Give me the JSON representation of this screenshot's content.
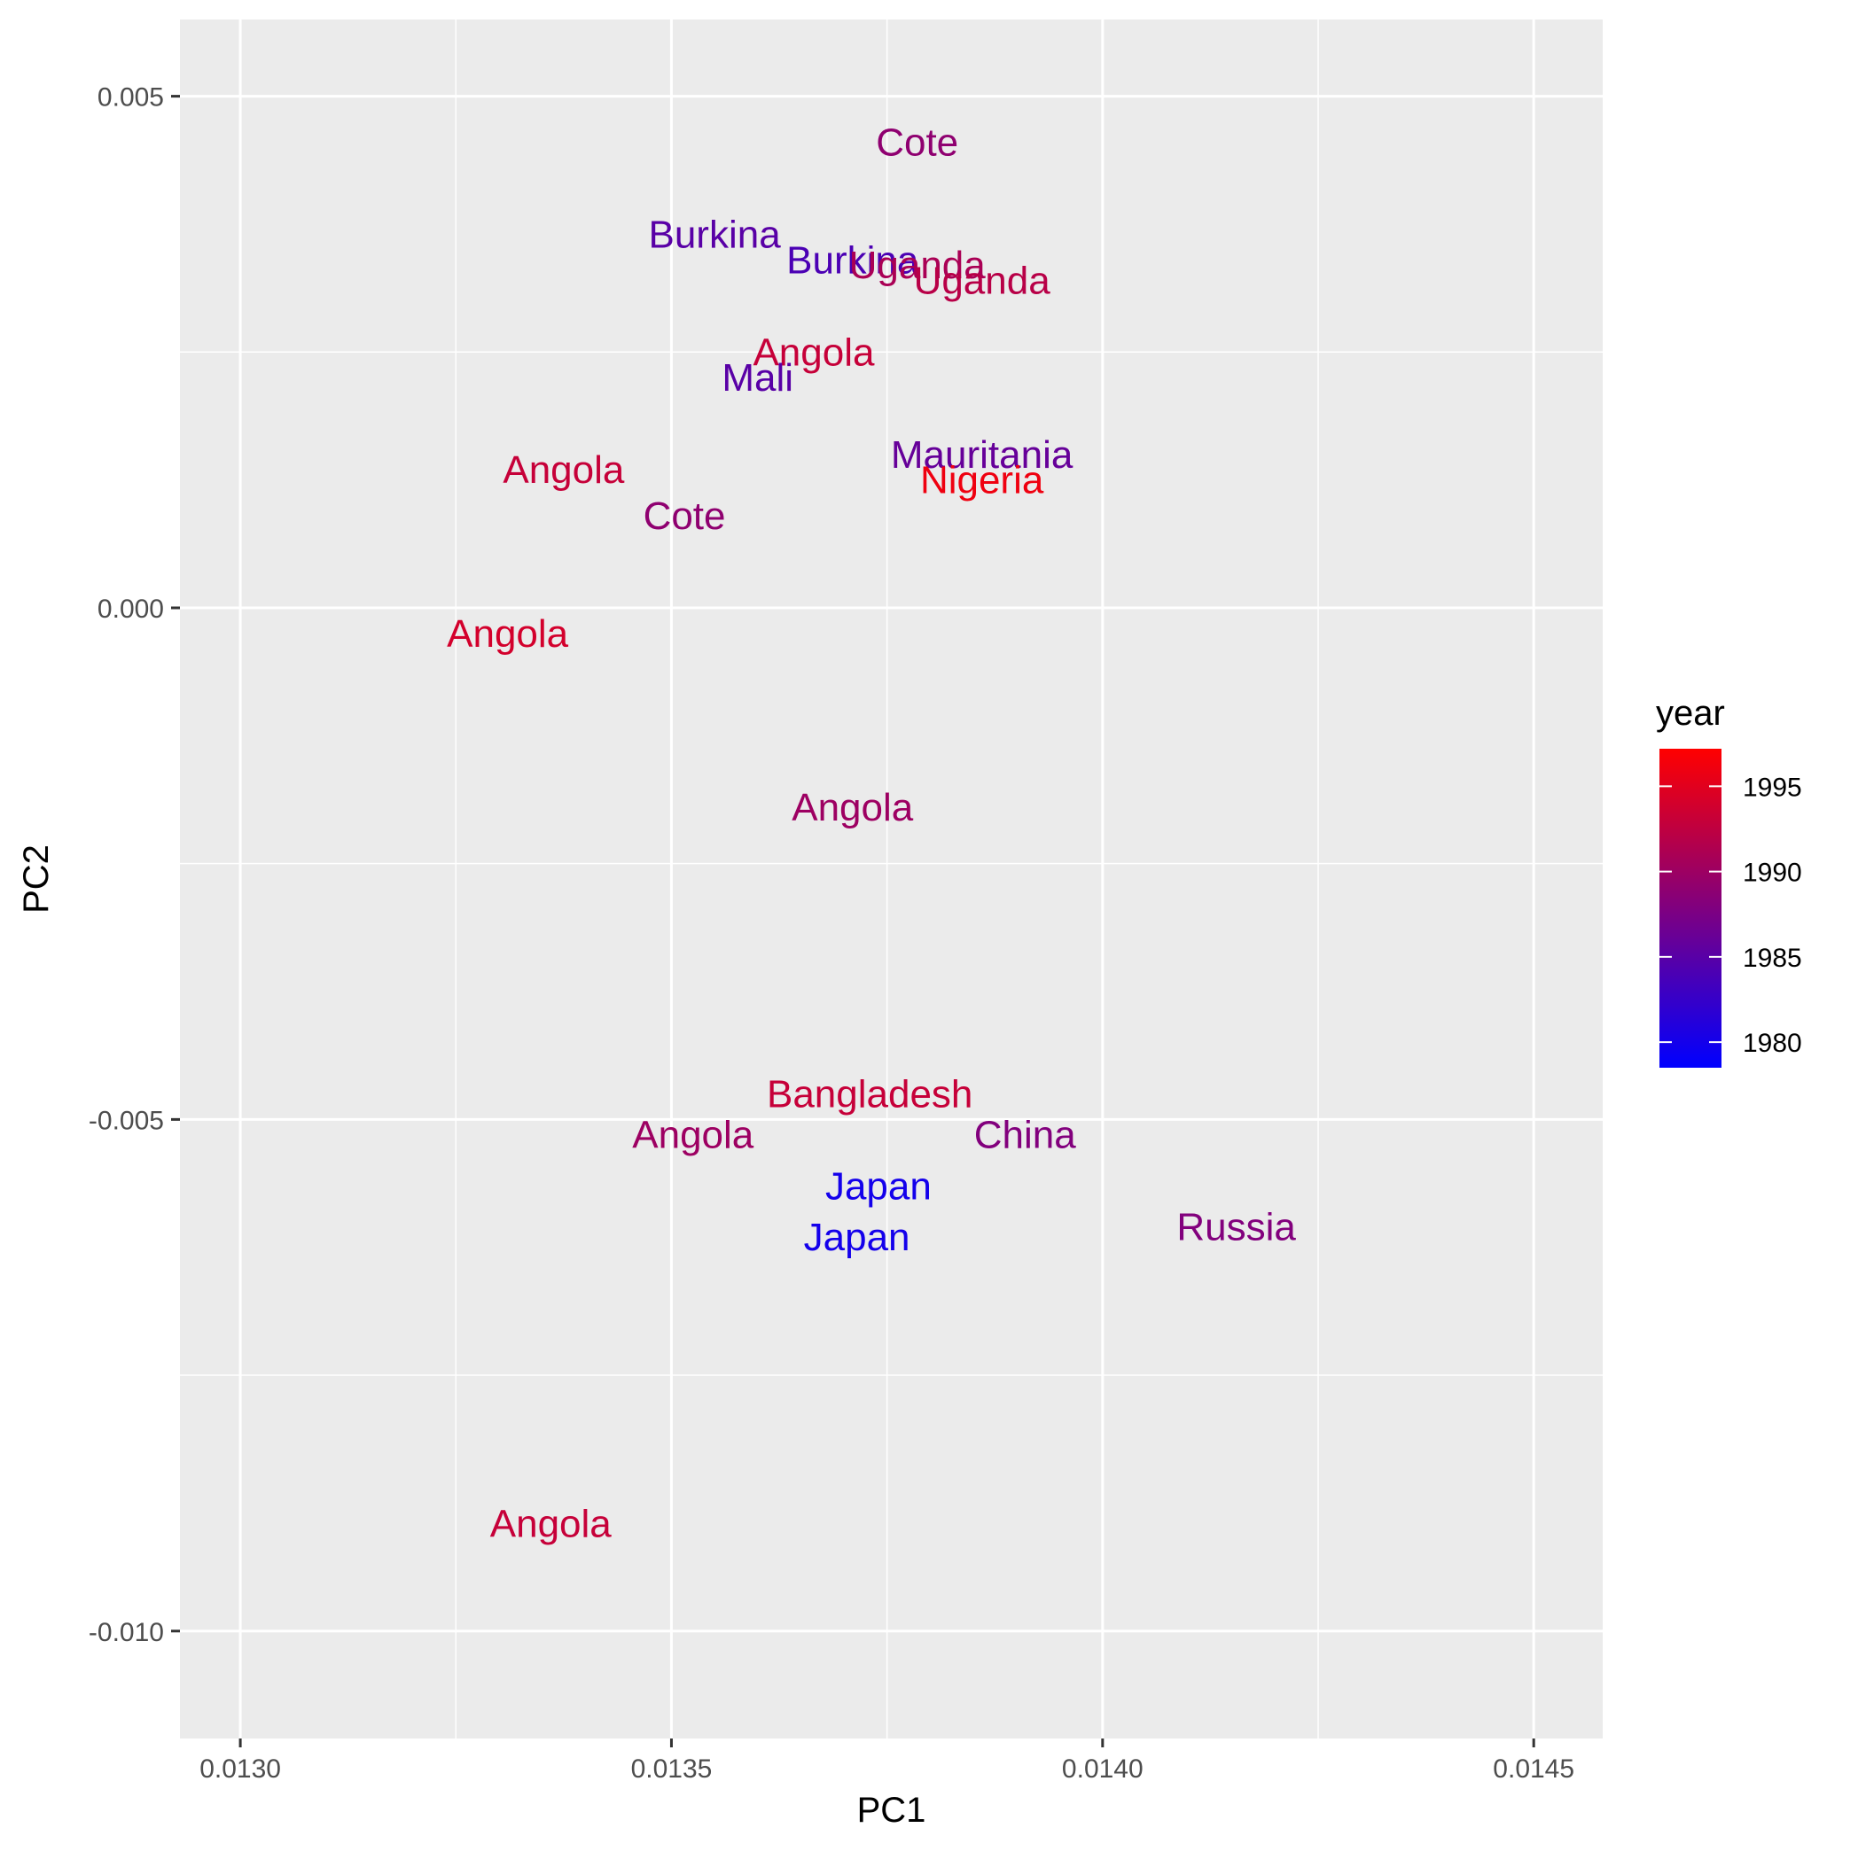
{
  "chart_data": {
    "type": "scatter",
    "xlabel": "PC1",
    "ylabel": "PC2",
    "xlim": [
      0.01293,
      0.01458
    ],
    "ylim": [
      -0.01105,
      0.00575
    ],
    "x_ticks": [
      {
        "value": 0.013,
        "label": "0.0130"
      },
      {
        "value": 0.0135,
        "label": "0.0135"
      },
      {
        "value": 0.014,
        "label": "0.0140"
      },
      {
        "value": 0.0145,
        "label": "0.0145"
      }
    ],
    "x_minor": [
      0.01325,
      0.01375,
      0.01425
    ],
    "y_ticks": [
      {
        "value": 0.005,
        "label": "0.005"
      },
      {
        "value": 0.0,
        "label": "0.000"
      },
      {
        "value": -0.005,
        "label": "-0.005"
      },
      {
        "value": -0.01,
        "label": "-0.010"
      }
    ],
    "y_minor": [
      0.0025,
      -0.0025,
      -0.0075
    ],
    "grid": true,
    "legend": {
      "title": "year",
      "position": "right",
      "range": [
        1978.5,
        1997.2
      ],
      "color_low": "#0000ff",
      "color_high": "#ff0000",
      "ticks": [
        {
          "value": 1995,
          "label": "1995"
        },
        {
          "value": 1990,
          "label": "1990"
        },
        {
          "value": 1985,
          "label": "1985"
        },
        {
          "value": 1980,
          "label": "1980"
        }
      ]
    },
    "points": [
      {
        "label": "Cote",
        "x": 0.013785,
        "y": 0.00455,
        "year": 1989
      },
      {
        "label": "Burkina",
        "x": 0.01355,
        "y": 0.00365,
        "year": 1985
      },
      {
        "label": "Burkina",
        "x": 0.01371,
        "y": 0.0034,
        "year": 1984
      },
      {
        "label": "Uganda",
        "x": 0.013785,
        "y": 0.00335,
        "year": 1991
      },
      {
        "label": "Uganda",
        "x": 0.01386,
        "y": 0.0032,
        "year": 1992
      },
      {
        "label": "Angola",
        "x": 0.013665,
        "y": 0.0025,
        "year": 1993
      },
      {
        "label": "Mali",
        "x": 0.0136,
        "y": 0.00225,
        "year": 1985
      },
      {
        "label": "Mauritania",
        "x": 0.01386,
        "y": 0.0015,
        "year": 1986
      },
      {
        "label": "Nigeria",
        "x": 0.01386,
        "y": 0.00125,
        "year": 1996
      },
      {
        "label": "Angola",
        "x": 0.013375,
        "y": 0.00135,
        "year": 1993
      },
      {
        "label": "Cote",
        "x": 0.013515,
        "y": 0.0009,
        "year": 1989
      },
      {
        "label": "Angola",
        "x": 0.01331,
        "y": -0.00025,
        "year": 1994
      },
      {
        "label": "Angola",
        "x": 0.01371,
        "y": -0.00195,
        "year": 1990
      },
      {
        "label": "Bangladesh",
        "x": 0.01373,
        "y": -0.00475,
        "year": 1993
      },
      {
        "label": "Angola",
        "x": 0.013525,
        "y": -0.00515,
        "year": 1990
      },
      {
        "label": "China",
        "x": 0.01391,
        "y": -0.00515,
        "year": 1988
      },
      {
        "label": "Japan",
        "x": 0.01374,
        "y": -0.00565,
        "year": 1980
      },
      {
        "label": "Japan",
        "x": 0.013715,
        "y": -0.00615,
        "year": 1980
      },
      {
        "label": "Russia",
        "x": 0.014155,
        "y": -0.00605,
        "year": 1988
      },
      {
        "label": "Angola",
        "x": 0.01336,
        "y": -0.00895,
        "year": 1993
      }
    ]
  }
}
